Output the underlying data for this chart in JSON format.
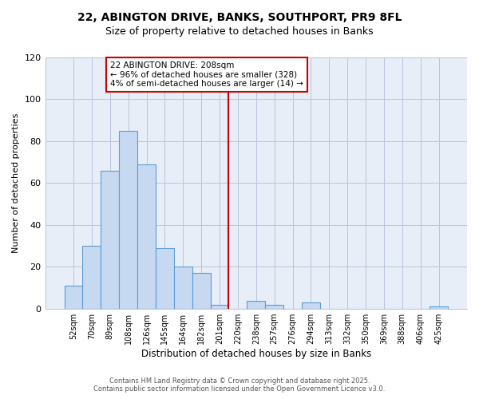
{
  "title_line1": "22, ABINGTON DRIVE, BANKS, SOUTHPORT, PR9 8FL",
  "title_line2": "Size of property relative to detached houses in Banks",
  "xlabel": "Distribution of detached houses by size in Banks",
  "ylabel": "Number of detached properties",
  "bar_labels": [
    "52sqm",
    "70sqm",
    "89sqm",
    "108sqm",
    "126sqm",
    "145sqm",
    "164sqm",
    "182sqm",
    "201sqm",
    "220sqm",
    "238sqm",
    "257sqm",
    "276sqm",
    "294sqm",
    "313sqm",
    "332sqm",
    "350sqm",
    "369sqm",
    "388sqm",
    "406sqm",
    "425sqm"
  ],
  "bar_values": [
    11,
    30,
    66,
    85,
    69,
    29,
    20,
    17,
    2,
    0,
    4,
    2,
    0,
    3,
    0,
    0,
    0,
    0,
    0,
    0,
    1
  ],
  "bar_color": "#c6d9f1",
  "bar_edge_color": "#5b9bd5",
  "vline_color": "#cc0000",
  "annotation_title": "22 ABINGTON DRIVE: 208sqm",
  "annotation_line2": "← 96% of detached houses are smaller (328)",
  "annotation_line3": "4% of semi-detached houses are larger (14) →",
  "annotation_box_color": "#ffffff",
  "annotation_box_edge": "#cc0000",
  "ylim": [
    0,
    120
  ],
  "yticks": [
    0,
    20,
    40,
    60,
    80,
    100,
    120
  ],
  "plot_bg_color": "#e8eef8",
  "grid_color": "#b8c4d8",
  "footer_line1": "Contains HM Land Registry data © Crown copyright and database right 2025.",
  "footer_line2": "Contains public sector information licensed under the Open Government Licence v3.0."
}
